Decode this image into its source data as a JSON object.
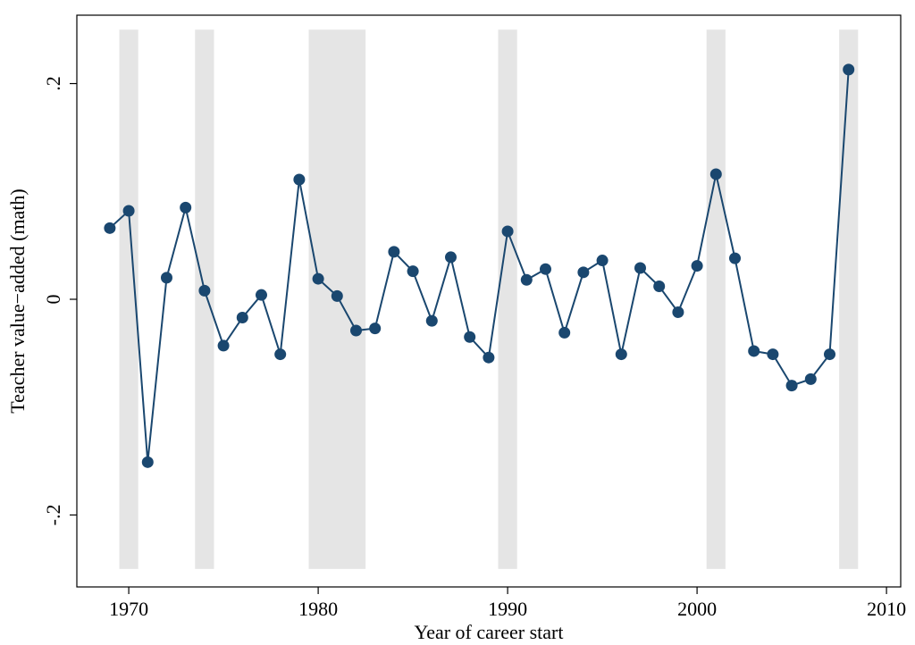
{
  "chart_data": {
    "type": "line",
    "x_label": "Year of career start",
    "y_label": "Teacher value−added (math)",
    "x": [
      1969,
      1970,
      1971,
      1972,
      1973,
      1974,
      1975,
      1976,
      1977,
      1978,
      1979,
      1980,
      1981,
      1982,
      1983,
      1984,
      1985,
      1986,
      1987,
      1988,
      1989,
      1990,
      1991,
      1992,
      1993,
      1994,
      1995,
      1996,
      1997,
      1998,
      1999,
      2000,
      2001,
      2002,
      2003,
      2004,
      2005,
      2006,
      2007,
      2008
    ],
    "series": [
      {
        "color": "#1a476f",
        "values": [
          0.066,
          0.082,
          -0.151,
          0.02,
          0.085,
          0.008,
          -0.043,
          -0.017,
          0.004,
          -0.051,
          0.111,
          0.019,
          0.003,
          -0.029,
          -0.027,
          0.044,
          0.026,
          -0.02,
          0.039,
          -0.035,
          -0.054,
          0.063,
          0.018,
          0.028,
          -0.031,
          0.025,
          0.036,
          -0.051,
          0.029,
          0.012,
          -0.012,
          0.031,
          0.116,
          0.038,
          -0.048,
          -0.051,
          -0.08,
          -0.074,
          -0.051,
          0.213
        ]
      }
    ],
    "shaded_periods": [
      [
        1969.5,
        1970.5
      ],
      [
        1973.5,
        1974.5
      ],
      [
        1979.5,
        1982.5
      ],
      [
        1989.5,
        1990.5
      ],
      [
        2000.5,
        2001.5
      ],
      [
        2007.5,
        2008.5
      ]
    ],
    "shaded_ylim": [
      -0.25,
      0.25
    ],
    "shade_color": "#e5e5e5",
    "xlim": [
      1967.26,
      2010.75
    ],
    "ylim": [
      -0.2667,
      0.2634
    ],
    "xticks": [
      1970,
      1980,
      1990,
      2000,
      2010
    ],
    "yticks": [
      {
        "value": -0.2,
        "label": "-.2"
      },
      0,
      {
        "value": 0.2,
        "label": ".2"
      }
    ],
    "grid": false
  }
}
